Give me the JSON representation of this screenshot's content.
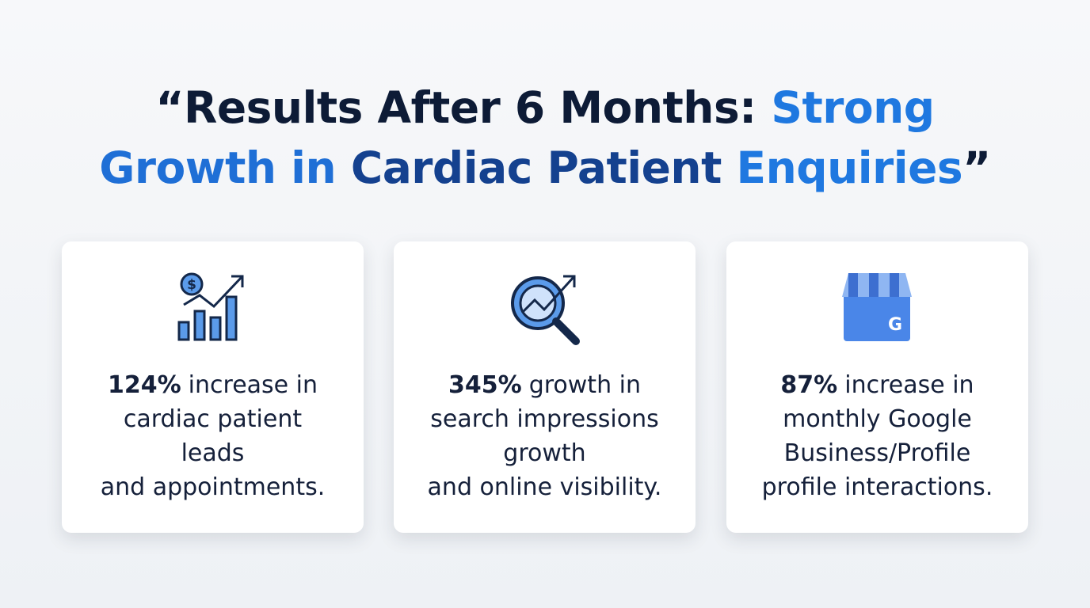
{
  "title": {
    "lines": [
      [
        {
          "text": "“Results After 6 Months: ",
          "color": "#0d1b36"
        },
        {
          "text": "Strong",
          "color": "#1f78e0"
        }
      ],
      [
        {
          "text": "Growth in ",
          "color": "#1f6fd6"
        },
        {
          "text": "Cardiac Patient ",
          "color": "#14418f"
        },
        {
          "text": "Enquiries",
          "color": "#1f78e0"
        },
        {
          "text": "”",
          "color": "#0d1b36"
        }
      ]
    ]
  },
  "cards": [
    {
      "lead": "124%",
      "lines": [
        "increase in",
        "cardiac patient",
        "leads",
        "and appointments."
      ]
    },
    {
      "lead": "345%",
      "lines": [
        "growth in",
        "search impressions",
        "growth",
        "and online visibility."
      ]
    },
    {
      "lead": "87%",
      "lines": [
        "increase in",
        "monthly Google",
        "Business/Profile",
        "profile interactions."
      ]
    }
  ]
}
